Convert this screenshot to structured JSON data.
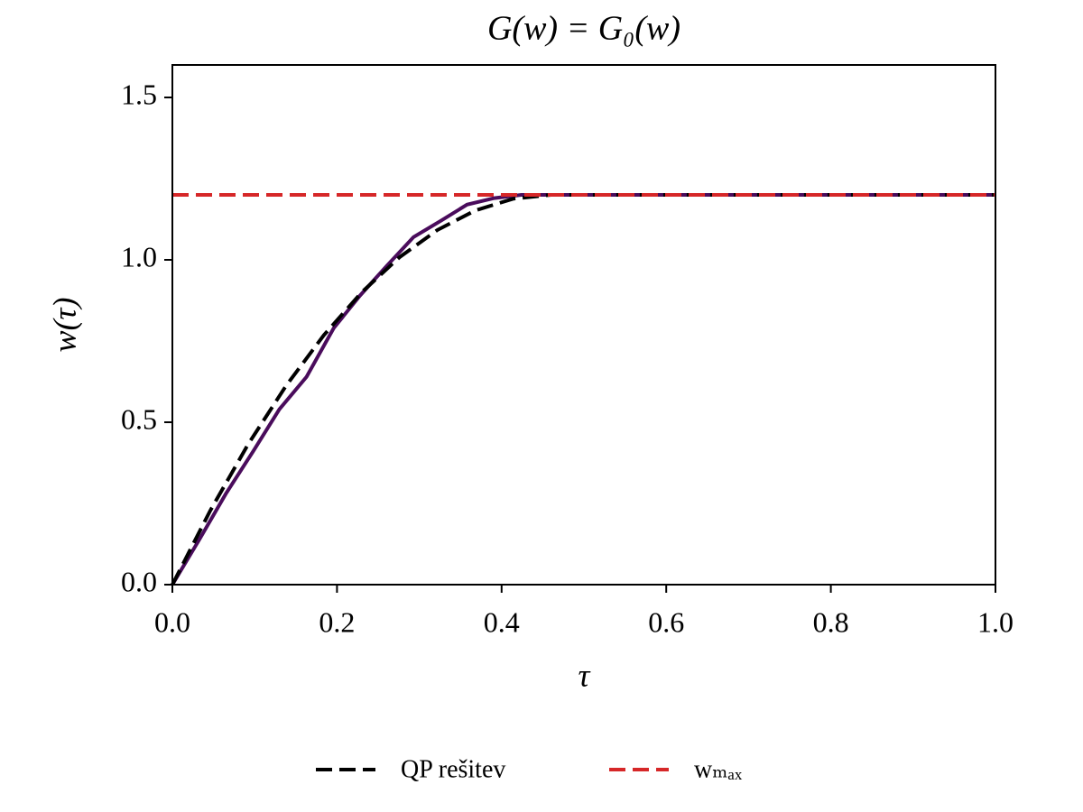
{
  "chart_data": {
    "type": "line",
    "title": "G(w) = G₀(w)",
    "x_label": "τ",
    "y_label": "w(τ)",
    "xlim": [
      0,
      1
    ],
    "ylim": [
      0,
      1.6
    ],
    "xticks": [
      {
        "value": 0,
        "label": "0.0"
      },
      0.2,
      0.4,
      0.6,
      0.8,
      {
        "value": 1,
        "label": "1.0"
      }
    ],
    "yticks": [
      {
        "value": 0,
        "label": "0.0"
      },
      0.5,
      {
        "value": 1,
        "label": "1.0"
      },
      1.5
    ],
    "grid": false,
    "legend": "bottom",
    "series": [
      {
        "color": "#4a0c5c",
        "dash": false,
        "x": [
          0,
          0.033,
          0.065,
          0.098,
          0.13,
          0.163,
          0.196,
          0.228,
          0.26,
          0.293,
          0.326,
          0.358,
          0.391,
          0.424,
          0.456,
          1.0
        ],
        "values": [
          0,
          0.14,
          0.28,
          0.41,
          0.54,
          0.64,
          0.79,
          0.89,
          0.98,
          1.07,
          1.12,
          1.17,
          1.19,
          1.2,
          1.2,
          1.2
        ]
      },
      {
        "name": "QP rešitev",
        "color": "#000000",
        "dash": true,
        "x": [
          0,
          0.046,
          0.092,
          0.138,
          0.184,
          0.23,
          0.276,
          0.322,
          0.368,
          0.414,
          0.46,
          1.0
        ],
        "values": [
          0,
          0.228,
          0.432,
          0.612,
          0.768,
          0.9,
          1.008,
          1.092,
          1.152,
          1.188,
          1.2,
          1.2
        ]
      },
      {
        "name": "wₘₐₓ",
        "color": "#d62728",
        "dash": true,
        "x": [
          0,
          1.0
        ],
        "values": [
          1.2,
          1.2
        ]
      }
    ]
  }
}
